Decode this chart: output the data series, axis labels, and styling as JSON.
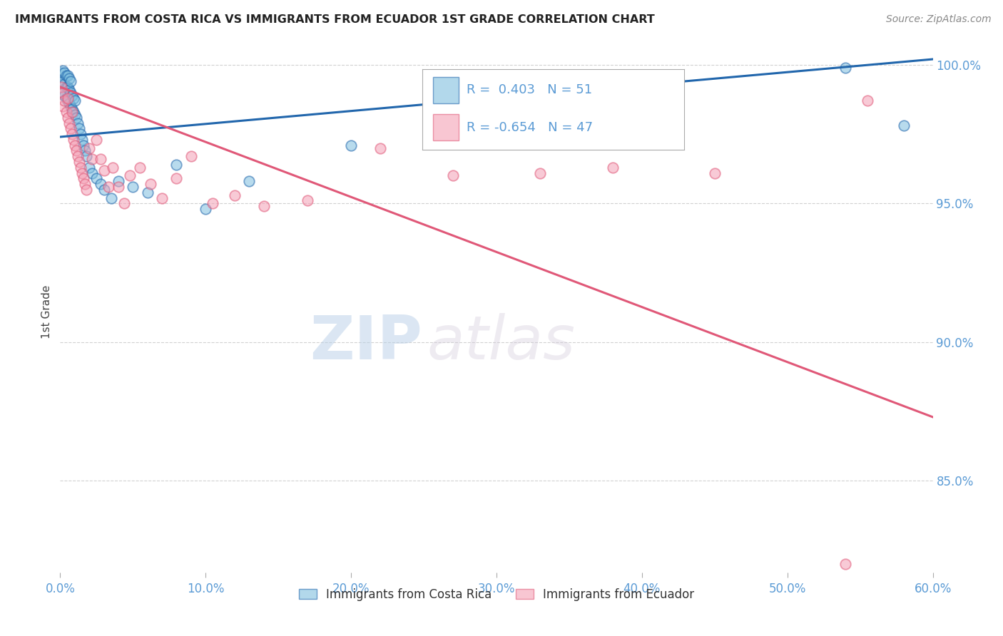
{
  "title": "IMMIGRANTS FROM COSTA RICA VS IMMIGRANTS FROM ECUADOR 1ST GRADE CORRELATION CHART",
  "source": "Source: ZipAtlas.com",
  "ylabel": "1st Grade",
  "legend_label1": "Immigrants from Costa Rica",
  "legend_label2": "Immigrants from Ecuador",
  "R1": 0.403,
  "N1": 51,
  "R2": -0.654,
  "N2": 47,
  "xlim": [
    0.0,
    0.6
  ],
  "ylim": [
    0.817,
    1.005
  ],
  "xticks": [
    0.0,
    0.1,
    0.2,
    0.3,
    0.4,
    0.5,
    0.6
  ],
  "yticks": [
    0.85,
    0.9,
    0.95,
    1.0
  ],
  "ytick_labels": [
    "85.0%",
    "90.0%",
    "95.0%",
    "100.0%"
  ],
  "xtick_labels": [
    "0.0%",
    "10.0%",
    "20.0%",
    "30.0%",
    "40.0%",
    "50.0%",
    "60.0%"
  ],
  "color_blue": "#7fbfdf",
  "color_pink": "#f4a0b5",
  "color_line_blue": "#2166ac",
  "color_line_pink": "#e05878",
  "color_axis_labels": "#5b9bd5",
  "color_title": "#222222",
  "blue_x": [
    0.001,
    0.001,
    0.002,
    0.002,
    0.002,
    0.003,
    0.003,
    0.003,
    0.004,
    0.004,
    0.004,
    0.005,
    0.005,
    0.005,
    0.006,
    0.006,
    0.006,
    0.007,
    0.007,
    0.007,
    0.008,
    0.008,
    0.009,
    0.009,
    0.01,
    0.01,
    0.011,
    0.012,
    0.013,
    0.014,
    0.015,
    0.016,
    0.017,
    0.018,
    0.02,
    0.022,
    0.025,
    0.028,
    0.03,
    0.035,
    0.04,
    0.05,
    0.06,
    0.08,
    0.1,
    0.13,
    0.2,
    0.26,
    0.31,
    0.54,
    0.58
  ],
  "blue_y": [
    0.993,
    0.997,
    0.99,
    0.994,
    0.998,
    0.989,
    0.993,
    0.997,
    0.988,
    0.992,
    0.996,
    0.987,
    0.992,
    0.996,
    0.986,
    0.991,
    0.995,
    0.985,
    0.99,
    0.994,
    0.984,
    0.989,
    0.983,
    0.988,
    0.982,
    0.987,
    0.981,
    0.979,
    0.977,
    0.975,
    0.973,
    0.971,
    0.969,
    0.967,
    0.963,
    0.961,
    0.959,
    0.957,
    0.955,
    0.952,
    0.958,
    0.956,
    0.954,
    0.964,
    0.948,
    0.958,
    0.971,
    0.98,
    0.993,
    0.999,
    0.978
  ],
  "pink_x": [
    0.001,
    0.002,
    0.002,
    0.003,
    0.004,
    0.005,
    0.005,
    0.006,
    0.007,
    0.008,
    0.008,
    0.009,
    0.01,
    0.011,
    0.012,
    0.013,
    0.014,
    0.015,
    0.016,
    0.017,
    0.018,
    0.02,
    0.022,
    0.025,
    0.028,
    0.03,
    0.033,
    0.036,
    0.04,
    0.044,
    0.048,
    0.055,
    0.062,
    0.07,
    0.08,
    0.09,
    0.105,
    0.12,
    0.14,
    0.17,
    0.22,
    0.27,
    0.33,
    0.38,
    0.45,
    0.54,
    0.555
  ],
  "pink_y": [
    0.992,
    0.99,
    0.985,
    0.987,
    0.983,
    0.981,
    0.988,
    0.979,
    0.977,
    0.975,
    0.983,
    0.973,
    0.971,
    0.969,
    0.967,
    0.965,
    0.963,
    0.961,
    0.959,
    0.957,
    0.955,
    0.97,
    0.966,
    0.973,
    0.966,
    0.962,
    0.956,
    0.963,
    0.956,
    0.95,
    0.96,
    0.963,
    0.957,
    0.952,
    0.959,
    0.967,
    0.95,
    0.953,
    0.949,
    0.951,
    0.97,
    0.96,
    0.961,
    0.963,
    0.961,
    0.82,
    0.987
  ],
  "blue_trendline_x": [
    0.0,
    0.6
  ],
  "blue_trendline_y": [
    0.974,
    1.002
  ],
  "pink_trendline_x": [
    0.0,
    0.6
  ],
  "pink_trendline_y": [
    0.992,
    0.873
  ],
  "watermark_zip": "ZIP",
  "watermark_atlas": "atlas",
  "background_color": "#ffffff",
  "grid_color": "#cccccc"
}
